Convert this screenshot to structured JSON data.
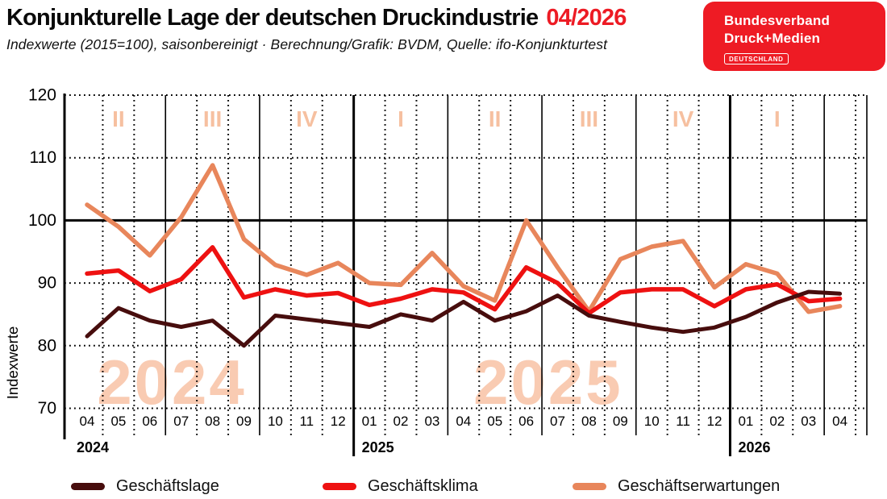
{
  "header": {
    "title": "Konjunkturelle Lage der deutschen Druckindustrie",
    "edition": "04/2026",
    "subtitle": "Indexwerte (2015=100), saisonbereinigt · Berechnung/Grafik: BVDM, Quelle: ifo-Konjunkturtest"
  },
  "logo": {
    "line1": "Bundesverband",
    "line2": "Druck+Medien",
    "badge": "DEUTSCHLAND"
  },
  "colors": {
    "accent_red": "#ED1B24",
    "logo_red": "#EE1B24",
    "lage": "#470D0D",
    "klima": "#EE1111",
    "erwartungen": "#E8865B",
    "watermark": "#F9CBB2",
    "quarter_label": "#F6C0A0",
    "grid": "#000000"
  },
  "chart_data": {
    "type": "line",
    "title": "Konjunkturelle Lage der deutschen Druckindustrie 04/2026",
    "ylabel": "Indexwerte",
    "ylim": [
      70,
      120
    ],
    "yticks": [
      120,
      110,
      100,
      90,
      80,
      70
    ],
    "baseline_value": 100,
    "grid": "dotted",
    "legend_position": "bottom",
    "x_labels": [
      "04",
      "05",
      "06",
      "07",
      "08",
      "09",
      "10",
      "11",
      "12",
      "01",
      "02",
      "03",
      "04",
      "05",
      "06",
      "07",
      "08",
      "09",
      "10",
      "11",
      "12",
      "01",
      "02",
      "03",
      "04"
    ],
    "boundaries": [
      "dotted",
      "dotted",
      "thin",
      "dotted",
      "dotted",
      "thin",
      "dotted",
      "dotted",
      "thick",
      "dotted",
      "dotted",
      "thin",
      "dotted",
      "dotted",
      "thin",
      "dotted",
      "dotted",
      "thin",
      "dotted",
      "dotted",
      "thick",
      "dotted",
      "dotted",
      "thin",
      "dotted"
    ],
    "year_labels": [
      {
        "text": "2024",
        "month_index": 0
      },
      {
        "text": "2025",
        "month_index": 9
      },
      {
        "text": "2026",
        "month_index": 21
      }
    ],
    "quarter_labels": [
      {
        "text": "II",
        "center_month": 1
      },
      {
        "text": "III",
        "center_month": 4
      },
      {
        "text": "IV",
        "center_month": 7
      },
      {
        "text": "I",
        "center_month": 10
      },
      {
        "text": "II",
        "center_month": 13
      },
      {
        "text": "III",
        "center_month": 16
      },
      {
        "text": "IV",
        "center_month": 19
      },
      {
        "text": "I",
        "center_month": 22
      }
    ],
    "watermarks": [
      {
        "text": "2024",
        "center_month": 2.7
      },
      {
        "text": "2025",
        "center_month": 14.7
      }
    ],
    "series": [
      {
        "name": "Geschäftserwartungen",
        "color_key": "erwartungen",
        "values": [
          102.5,
          99.0,
          94.4,
          100.5,
          108.8,
          97.0,
          92.9,
          91.3,
          93.2,
          90.0,
          89.7,
          94.8,
          89.5,
          87.2,
          100.0,
          92.5,
          85.5,
          93.8,
          95.8,
          96.7,
          89.3,
          93.0,
          91.5,
          85.4,
          86.3
        ]
      },
      {
        "name": "Geschäftsklima",
        "color_key": "klima",
        "values": [
          91.5,
          92.0,
          88.7,
          90.6,
          95.7,
          87.7,
          89.0,
          88.0,
          88.4,
          86.5,
          87.5,
          89.0,
          88.5,
          85.8,
          92.5,
          90.0,
          85.2,
          88.5,
          89.0,
          89.0,
          86.3,
          89.0,
          89.8,
          87.1,
          87.5
        ]
      },
      {
        "name": "Geschäftslage",
        "color_key": "lage",
        "values": [
          81.5,
          86.0,
          84.0,
          83.0,
          84.0,
          80.0,
          84.8,
          84.2,
          83.6,
          83.0,
          85.0,
          84.0,
          87.0,
          84.0,
          85.5,
          88.0,
          84.8,
          83.8,
          82.9,
          82.2,
          82.9,
          84.6,
          86.9,
          88.6,
          88.3
        ]
      }
    ],
    "legend_order": [
      "Geschäftslage",
      "Geschäftsklima",
      "Geschäftserwartungen"
    ]
  }
}
